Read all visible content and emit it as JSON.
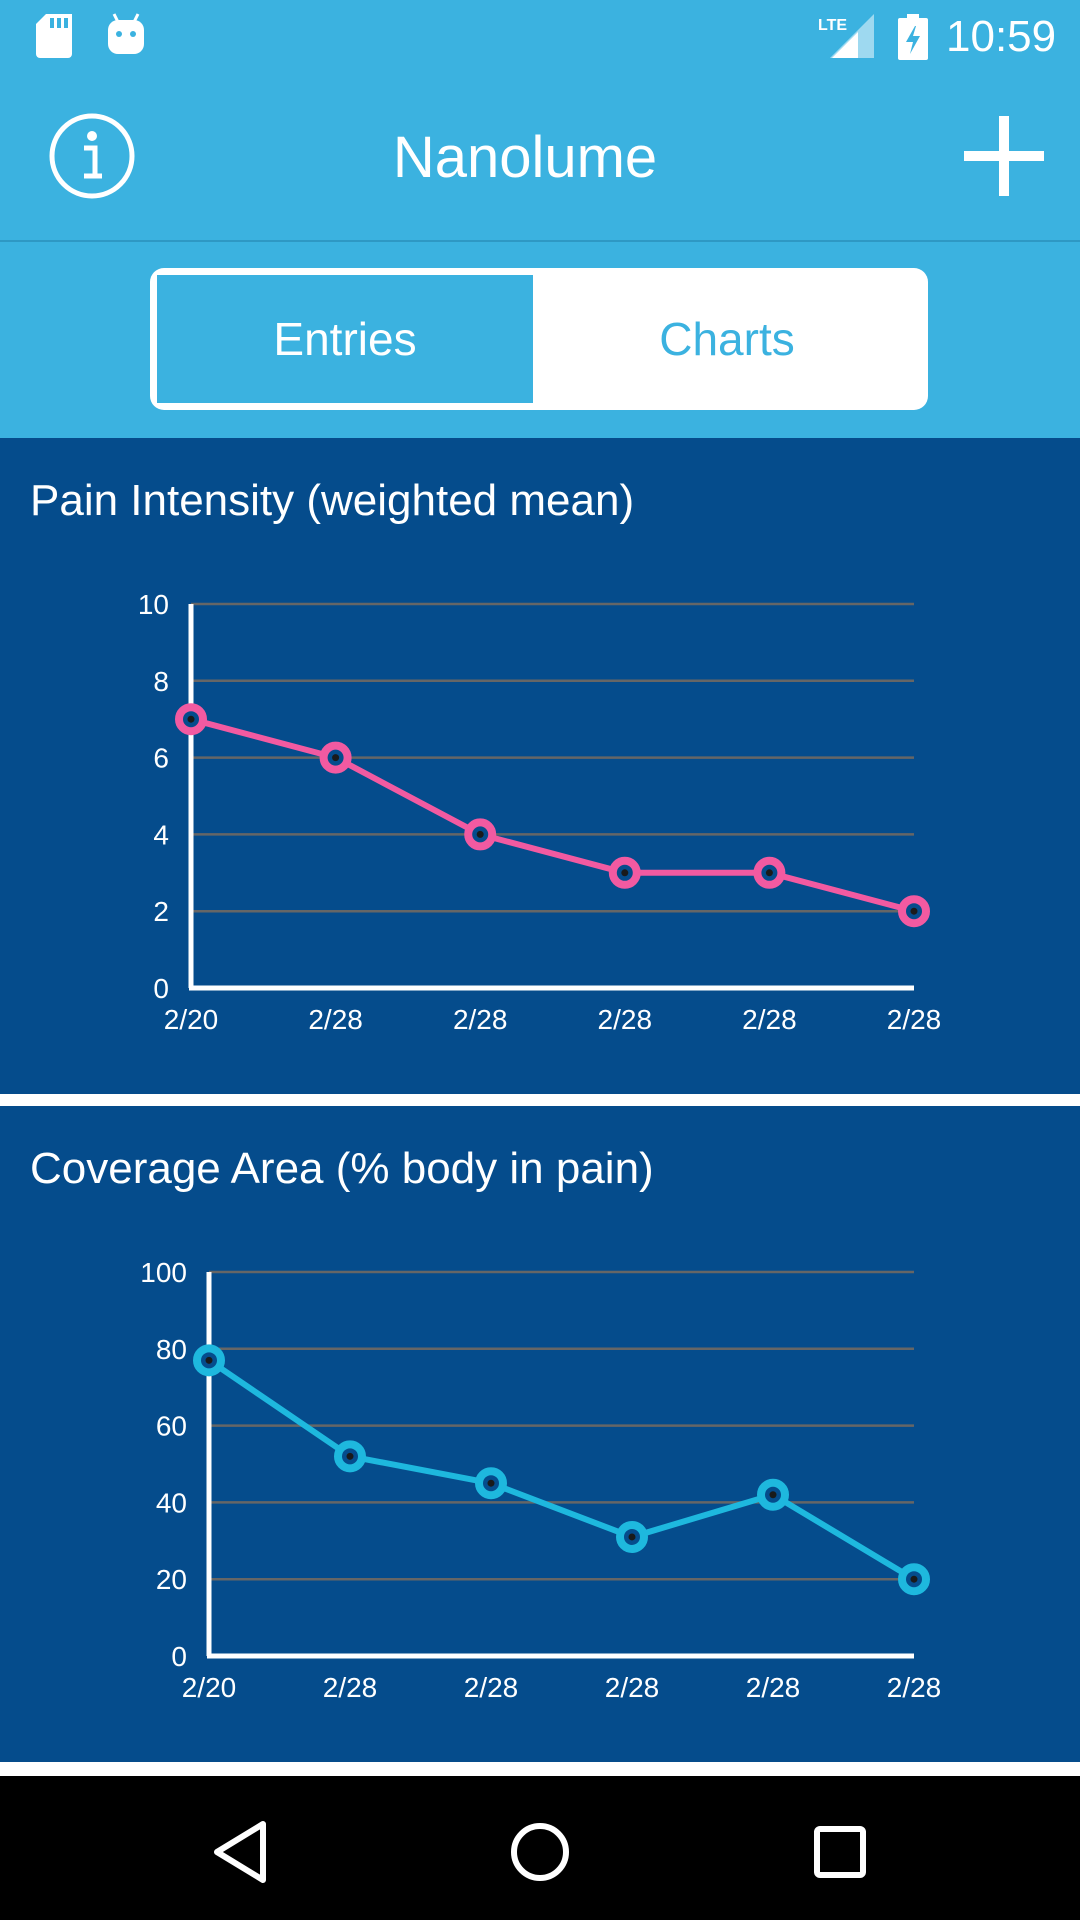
{
  "status_bar": {
    "time": "10:59",
    "network_label": "LTE",
    "icons": [
      "sd-card-icon",
      "android-icon",
      "lte-signal-icon",
      "battery-charging-icon"
    ]
  },
  "app_bar": {
    "title": "Nanolume",
    "left_icon": "info-icon",
    "right_icon": "plus-icon"
  },
  "tabs": [
    {
      "label": "Entries",
      "selected": true
    },
    {
      "label": "Charts",
      "selected": false
    }
  ],
  "colors": {
    "primary": "#3BB2E0",
    "panel_bg": "#054C8C",
    "pain_series": "#F25AA1",
    "coverage_series": "#1EB8DE",
    "grid": "#666666"
  },
  "chart_data": [
    {
      "type": "line",
      "title": "Pain Intensity (weighted mean)",
      "x": [
        "2/20",
        "2/28",
        "2/28",
        "2/28",
        "2/28",
        "2/28"
      ],
      "series": [
        {
          "values": [
            7,
            6,
            4,
            3,
            3,
            2
          ]
        }
      ],
      "ylim": [
        0,
        10
      ],
      "yticks": [
        "0",
        "2",
        "4",
        "6",
        "8",
        "10"
      ],
      "grid": true,
      "legend": "none"
    },
    {
      "type": "line",
      "title": "Coverage Area (% body in pain)",
      "x": [
        "2/20",
        "2/28",
        "2/28",
        "2/28",
        "2/28",
        "2/28"
      ],
      "series": [
        {
          "values": [
            77,
            52,
            45,
            31,
            42,
            20
          ]
        }
      ],
      "ylim": [
        0,
        100
      ],
      "yticks": [
        "0",
        "20",
        "40",
        "60",
        "80",
        "100"
      ],
      "grid": true,
      "legend": "none"
    }
  ],
  "nav_bar": {
    "icons": [
      "back-icon",
      "home-icon",
      "recents-icon"
    ]
  }
}
